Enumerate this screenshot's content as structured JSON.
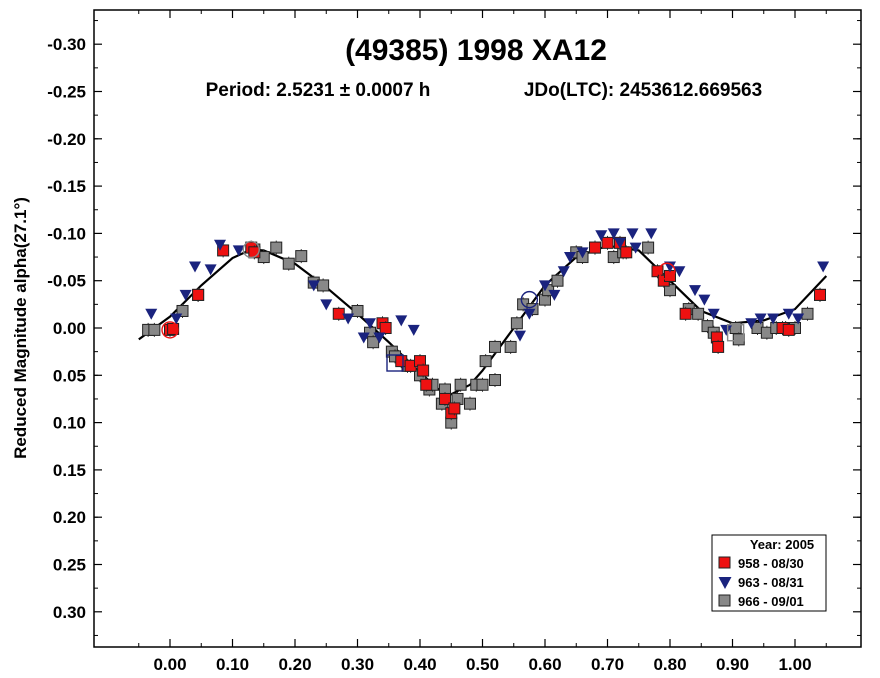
{
  "chart_data": {
    "type": "scatter",
    "title": "(49385) 1998 XA12",
    "subtitle_period": "Period: 2.5231 ± 0.0007 h",
    "subtitle_jd": "JDo(LTC): 2453612.669563",
    "ylabel": "Reduced Magnitude alpha(27.1°)",
    "xlabel": "",
    "xlim": [
      -0.12,
      1.1
    ],
    "ylim": [
      0.34,
      -0.34
    ],
    "y_inverted": true,
    "grid": false,
    "xticks": [
      0.0,
      0.1,
      0.2,
      0.3,
      0.4,
      0.5,
      0.6,
      0.7,
      0.8,
      0.9,
      1.0
    ],
    "xtick_labels": [
      "0.00",
      "0.10",
      "0.20",
      "0.30",
      "0.40",
      "0.50",
      "0.60",
      "0.70",
      "0.80",
      "0.90",
      "1.00"
    ],
    "yticks": [
      -0.3,
      -0.25,
      -0.2,
      -0.15,
      -0.1,
      -0.05,
      0.0,
      0.05,
      0.1,
      0.15,
      0.2,
      0.25,
      0.3
    ],
    "ytick_labels": [
      "-0.30",
      "-0.25",
      "-0.20",
      "-0.15",
      "-0.10",
      "-0.05",
      "0.00",
      "0.05",
      "0.10",
      "0.15",
      "0.20",
      "0.25",
      "0.30"
    ],
    "legend": {
      "placement": "bottom-right",
      "title": "Year: 2005",
      "entries": [
        "958 - 08/30",
        "963 - 08/31",
        "966 - 09/01"
      ]
    },
    "series": [
      {
        "name": "958 - 08/30",
        "marker": "square",
        "color": "#ee1111",
        "points": [
          [
            0.0,
            0.002
          ],
          [
            0.005,
            0.001
          ],
          [
            0.045,
            -0.035
          ],
          [
            0.085,
            -0.082
          ],
          [
            0.13,
            -0.085
          ],
          [
            0.135,
            -0.08
          ],
          [
            0.27,
            -0.015
          ],
          [
            0.34,
            -0.005
          ],
          [
            0.345,
            0.0
          ],
          [
            0.37,
            0.035
          ],
          [
            0.385,
            0.04
          ],
          [
            0.4,
            0.035
          ],
          [
            0.405,
            0.045
          ],
          [
            0.41,
            0.06
          ],
          [
            0.44,
            0.075
          ],
          [
            0.45,
            0.09
          ],
          [
            0.455,
            0.085
          ],
          [
            0.68,
            -0.085
          ],
          [
            0.7,
            -0.09
          ],
          [
            0.72,
            -0.09
          ],
          [
            0.73,
            -0.08
          ],
          [
            0.78,
            -0.06
          ],
          [
            0.79,
            -0.05
          ],
          [
            0.8,
            -0.055
          ],
          [
            0.825,
            -0.015
          ],
          [
            0.875,
            0.01
          ],
          [
            0.877,
            0.02
          ],
          [
            0.98,
            0.0
          ],
          [
            0.99,
            0.002
          ],
          [
            1.04,
            -0.035
          ]
        ]
      },
      {
        "name": "963 - 08/31",
        "marker": "triangle-down",
        "color": "#1a237e",
        "points": [
          [
            -0.03,
            -0.015
          ],
          [
            0.01,
            -0.01
          ],
          [
            0.025,
            -0.035
          ],
          [
            0.04,
            -0.065
          ],
          [
            0.065,
            -0.062
          ],
          [
            0.08,
            -0.088
          ],
          [
            0.11,
            -0.082
          ],
          [
            0.23,
            -0.045
          ],
          [
            0.25,
            -0.025
          ],
          [
            0.285,
            -0.01
          ],
          [
            0.31,
            0.01
          ],
          [
            0.32,
            -0.005
          ],
          [
            0.335,
            0.01
          ],
          [
            0.37,
            -0.008
          ],
          [
            0.39,
            0.002
          ],
          [
            0.56,
            0.008
          ],
          [
            0.575,
            -0.015
          ],
          [
            0.6,
            -0.045
          ],
          [
            0.615,
            -0.035
          ],
          [
            0.63,
            -0.06
          ],
          [
            0.64,
            -0.075
          ],
          [
            0.66,
            -0.08
          ],
          [
            0.69,
            -0.098
          ],
          [
            0.71,
            -0.1
          ],
          [
            0.72,
            -0.09
          ],
          [
            0.74,
            -0.1
          ],
          [
            0.745,
            -0.085
          ],
          [
            0.77,
            -0.1
          ],
          [
            0.8,
            -0.065
          ],
          [
            0.815,
            -0.06
          ],
          [
            0.84,
            -0.04
          ],
          [
            0.855,
            -0.03
          ],
          [
            0.87,
            -0.015
          ],
          [
            0.89,
            0.002
          ],
          [
            0.93,
            -0.005
          ],
          [
            0.945,
            -0.01
          ],
          [
            0.965,
            -0.01
          ],
          [
            0.99,
            -0.015
          ],
          [
            1.005,
            -0.01
          ],
          [
            1.045,
            -0.065
          ]
        ]
      },
      {
        "name": "966 - 09/01",
        "marker": "square",
        "color": "#888888",
        "points": [
          [
            -0.035,
            0.002
          ],
          [
            -0.025,
            0.002
          ],
          [
            0.02,
            -0.018
          ],
          [
            0.045,
            -0.035
          ],
          [
            0.135,
            -0.083
          ],
          [
            0.15,
            -0.075
          ],
          [
            0.17,
            -0.085
          ],
          [
            0.19,
            -0.068
          ],
          [
            0.21,
            -0.076
          ],
          [
            0.23,
            -0.048
          ],
          [
            0.245,
            -0.045
          ],
          [
            0.3,
            -0.018
          ],
          [
            0.32,
            0.005
          ],
          [
            0.325,
            0.015
          ],
          [
            0.355,
            0.025
          ],
          [
            0.36,
            0.03
          ],
          [
            0.38,
            0.04
          ],
          [
            0.4,
            0.05
          ],
          [
            0.415,
            0.065
          ],
          [
            0.42,
            0.06
          ],
          [
            0.435,
            0.08
          ],
          [
            0.44,
            0.065
          ],
          [
            0.45,
            0.1
          ],
          [
            0.46,
            0.075
          ],
          [
            0.465,
            0.06
          ],
          [
            0.48,
            0.08
          ],
          [
            0.49,
            0.06
          ],
          [
            0.5,
            0.06
          ],
          [
            0.505,
            0.035
          ],
          [
            0.52,
            0.055
          ],
          [
            0.52,
            0.02
          ],
          [
            0.545,
            0.02
          ],
          [
            0.555,
            -0.005
          ],
          [
            0.565,
            -0.025
          ],
          [
            0.58,
            -0.02
          ],
          [
            0.6,
            -0.03
          ],
          [
            0.605,
            -0.04
          ],
          [
            0.62,
            -0.05
          ],
          [
            0.65,
            -0.08
          ],
          [
            0.66,
            -0.075
          ],
          [
            0.68,
            -0.085
          ],
          [
            0.71,
            -0.075
          ],
          [
            0.725,
            -0.08
          ],
          [
            0.765,
            -0.085
          ],
          [
            0.8,
            -0.04
          ],
          [
            0.83,
            -0.02
          ],
          [
            0.845,
            -0.015
          ],
          [
            0.86,
            -0.002
          ],
          [
            0.87,
            0.005
          ],
          [
            0.905,
            0.0
          ],
          [
            0.91,
            0.012
          ],
          [
            0.94,
            0.0
          ],
          [
            0.955,
            0.005
          ],
          [
            0.97,
            0.0
          ],
          [
            0.985,
            0.0
          ],
          [
            1.0,
            0.0
          ],
          [
            1.02,
            -0.015
          ],
          [
            1.04,
            -0.035
          ]
        ]
      }
    ],
    "fit_curve": {
      "color": "#000000",
      "points": [
        [
          -0.05,
          0.012
        ],
        [
          0.0,
          -0.012
        ],
        [
          0.05,
          -0.045
        ],
        [
          0.1,
          -0.074
        ],
        [
          0.13,
          -0.083
        ],
        [
          0.15,
          -0.082
        ],
        [
          0.2,
          -0.068
        ],
        [
          0.25,
          -0.043
        ],
        [
          0.3,
          -0.015
        ],
        [
          0.35,
          0.015
        ],
        [
          0.4,
          0.047
        ],
        [
          0.43,
          0.065
        ],
        [
          0.45,
          0.07
        ],
        [
          0.48,
          0.06
        ],
        [
          0.5,
          0.045
        ],
        [
          0.55,
          0.0
        ],
        [
          0.6,
          -0.045
        ],
        [
          0.65,
          -0.075
        ],
        [
          0.7,
          -0.087
        ],
        [
          0.75,
          -0.082
        ],
        [
          0.8,
          -0.05
        ],
        [
          0.85,
          -0.018
        ],
        [
          0.9,
          -0.005
        ],
        [
          0.95,
          -0.008
        ],
        [
          1.0,
          -0.02
        ],
        [
          1.05,
          -0.055
        ]
      ]
    },
    "highlight_markers": [
      {
        "x": 0.0,
        "y": 0.002,
        "shape": "circle",
        "color": "#ee1111"
      },
      {
        "x": 0.13,
        "y": -0.083,
        "shape": "circle",
        "color": "#888888"
      },
      {
        "x": 0.575,
        "y": -0.03,
        "shape": "circle",
        "color": "#1a237e"
      },
      {
        "x": 0.795,
        "y": -0.06,
        "shape": "circle",
        "color": "#ee1111"
      },
      {
        "x": 0.36,
        "y": 0.037,
        "shape": "square",
        "color": "#1a237e"
      },
      {
        "x": 0.905,
        "y": 0.005,
        "shape": "square",
        "color": "#888888"
      }
    ]
  }
}
